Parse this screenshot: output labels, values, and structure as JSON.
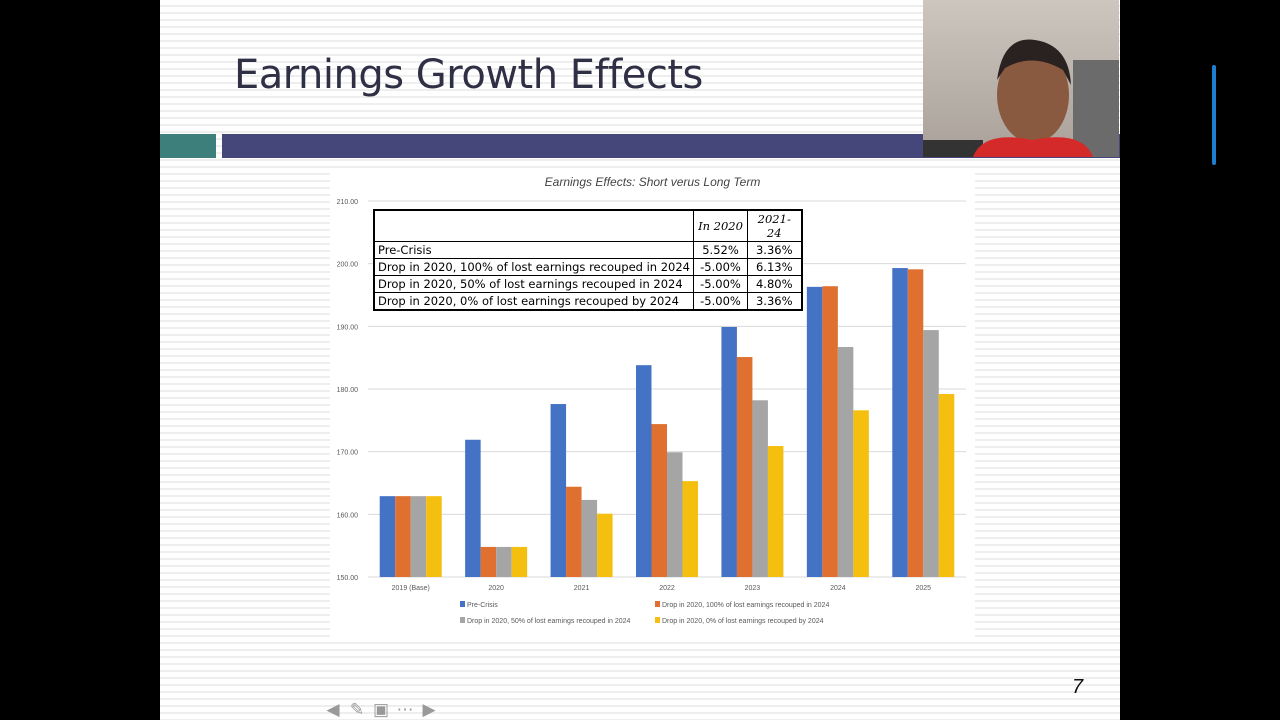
{
  "slide": {
    "title": "Earnings Growth Effects",
    "page_number": "7"
  },
  "table": {
    "headers": [
      "",
      "In 2020",
      "2021-24"
    ],
    "rows": [
      [
        "Pre-Crisis",
        "5.52%",
        "3.36%"
      ],
      [
        "Drop in 2020, 100% of lost earnings recouped in 2024",
        "-5.00%",
        "6.13%"
      ],
      [
        "Drop in 2020, 50% of lost earnings recouped in 2024",
        "-5.00%",
        "4.80%"
      ],
      [
        "Drop in 2020, 0% of lost earnings recouped by 2024",
        "-5.00%",
        "3.36%"
      ]
    ]
  },
  "chart_data": {
    "type": "bar",
    "title": "Earnings Effects: Short verus Long Term",
    "categories": [
      "2019 (Base)",
      "2020",
      "2021",
      "2022",
      "2023",
      "2024",
      "2025"
    ],
    "ylim": [
      150,
      210
    ],
    "yticks": [
      "150.00",
      "160.00",
      "170.00",
      "180.00",
      "190.00",
      "200.00",
      "210.00"
    ],
    "grid": true,
    "legend_placement": "bottom",
    "series": [
      {
        "name": "Pre-Crisis",
        "color": "#4472c4",
        "values": [
          162.9,
          171.9,
          177.6,
          183.8,
          189.9,
          196.3,
          199.3
        ]
      },
      {
        "name": "Drop in 2020, 100% of lost earnings recouped in 2024",
        "color": "#e07030",
        "values": [
          162.9,
          154.8,
          164.4,
          174.4,
          185.1,
          196.4,
          199.1
        ]
      },
      {
        "name": "Drop in 2020, 50% of lost earnings recouped in 2024",
        "color": "#a5a5a5",
        "values": [
          162.9,
          154.8,
          162.3,
          169.9,
          178.2,
          186.7,
          189.4
        ]
      },
      {
        "name": "Drop in 2020, 0% of lost earnings recouped by 2024",
        "color": "#f5bf10",
        "values": [
          162.9,
          154.8,
          160.1,
          165.3,
          170.9,
          176.6,
          179.2
        ]
      }
    ]
  },
  "nav": {
    "icons": [
      "arrow-left-icon",
      "pen-icon",
      "slides-icon",
      "more-icon",
      "arrow-right-icon"
    ]
  }
}
